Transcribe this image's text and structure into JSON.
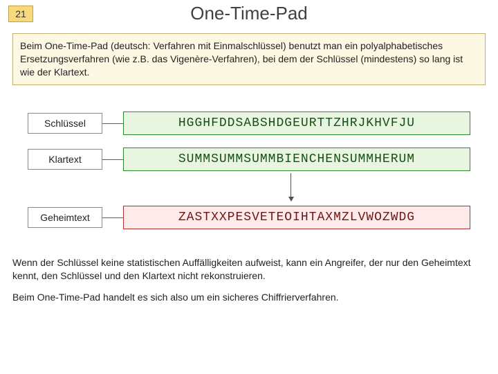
{
  "slide_number": "21",
  "title": "One-Time-Pad",
  "intro": "Beim One-Time-Pad (deutsch: Verfahren mit Einmalschlüssel) benutzt man ein polyalphabetisches Ersetzungsverfahren (wie z.B. das Vigenère-Verfahren), bei dem der Schlüssel (mindestens) so lang ist wie der Klartext.",
  "rows": {
    "key": {
      "label": "Schlüssel",
      "value": "HGGHFDDSABSHDGEURTTZHRJKHVFJU"
    },
    "plain": {
      "label": "Klartext",
      "value": "SUMMSUMMSUMMBIENCHENSUMMHERUM"
    },
    "cipher": {
      "label": "Geheimtext",
      "value": "ZASTXXPESVETEOIHTAXMZLVWOZWDG"
    }
  },
  "para1": "Wenn der Schlüssel keine statistischen Auffälligkeiten aufweist, kann ein Angreifer, der nur den Geheimtext kennt, den Schlüssel und den Klartext nicht rekonstruieren.",
  "para2": "Beim One-Time-Pad handelt es sich also um ein sicheres Chiffrierverfahren.",
  "colors": {
    "slide_number_bg": "#f5d97a",
    "intro_bg": "#fdf8e3",
    "green_border": "#2a8a2a",
    "green_bg": "#e8f5e0",
    "red_border": "#b03030",
    "red_bg": "#fdeaea"
  }
}
